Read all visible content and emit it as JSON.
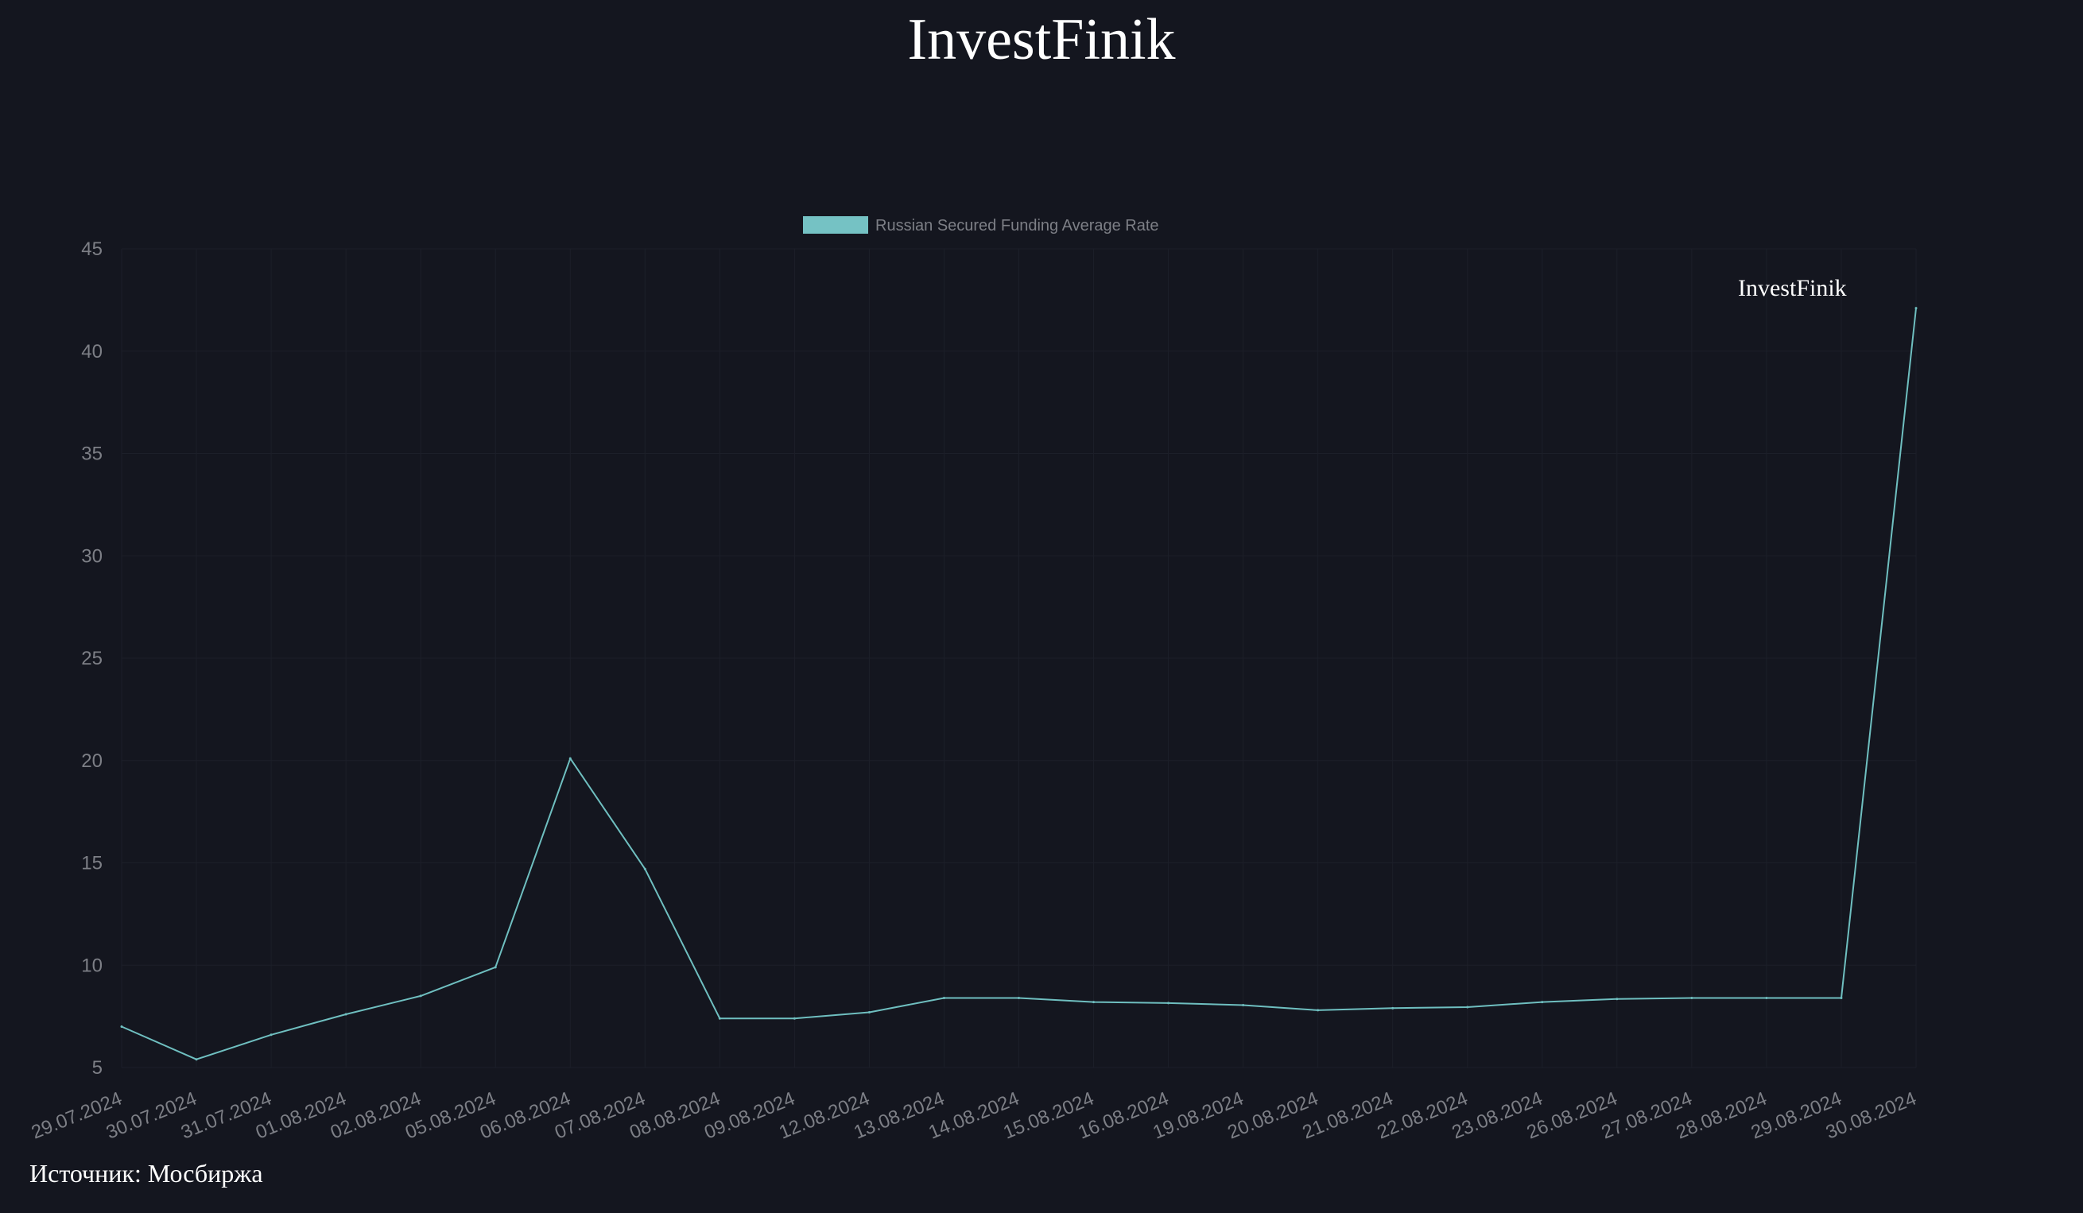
{
  "header": {
    "title": "InvestFinik"
  },
  "footer": {
    "source": "Источник: Мосбиржа"
  },
  "watermark": {
    "text": "InvestFinik"
  },
  "colors": {
    "background": "#14161f",
    "line": "#6fbfc0",
    "legend_swatch": "#75c2c4",
    "tick_text": "#7d7f86",
    "grid": "#1c1f29"
  },
  "chart_data": {
    "type": "line",
    "title": "",
    "xlabel": "",
    "ylabel": "",
    "ylim": [
      5,
      45
    ],
    "yticks": [
      5,
      10,
      15,
      20,
      25,
      30,
      35,
      40,
      45
    ],
    "grid": true,
    "legend_position": "top-center",
    "categories": [
      "29.07.2024",
      "30.07.2024",
      "31.07.2024",
      "01.08.2024",
      "02.08.2024",
      "05.08.2024",
      "06.08.2024",
      "07.08.2024",
      "08.08.2024",
      "09.08.2024",
      "12.08.2024",
      "13.08.2024",
      "14.08.2024",
      "15.08.2024",
      "16.08.2024",
      "19.08.2024",
      "20.08.2024",
      "21.08.2024",
      "22.08.2024",
      "23.08.2024",
      "26.08.2024",
      "27.08.2024",
      "28.08.2024",
      "29.08.2024",
      "30.08.2024"
    ],
    "series": [
      {
        "name": "Russian Secured Funding Average Rate",
        "values": [
          7.0,
          5.4,
          6.6,
          7.6,
          8.5,
          9.9,
          20.1,
          14.7,
          7.4,
          7.4,
          7.7,
          8.4,
          8.4,
          8.2,
          8.15,
          8.05,
          7.8,
          7.9,
          7.95,
          8.2,
          8.35,
          8.4,
          8.4,
          8.4,
          42.1
        ]
      }
    ]
  }
}
